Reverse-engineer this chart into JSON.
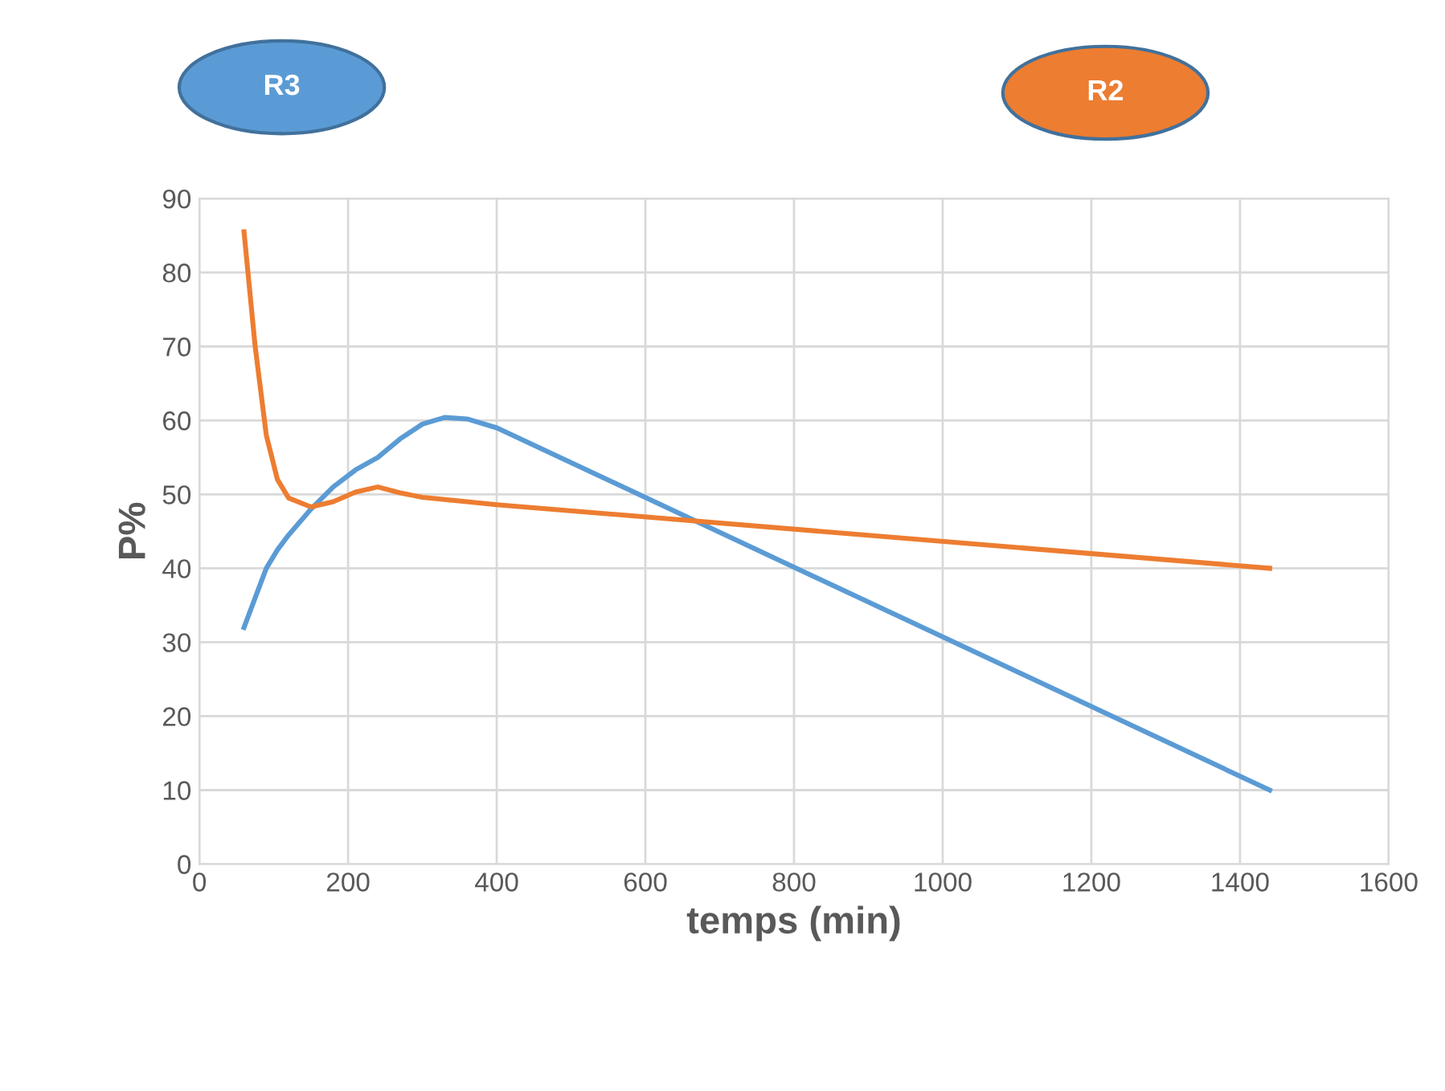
{
  "chart_data": {
    "type": "line",
    "xlabel": "temps (min)",
    "ylabel": "P%",
    "x": [
      60,
      75,
      90,
      105,
      120,
      150,
      180,
      210,
      240,
      270,
      300,
      330,
      360,
      400,
      1440
    ],
    "series": [
      {
        "name": "R3",
        "color": "#5b9bd5",
        "values": [
          32,
          36,
          40,
          42.5,
          44.5,
          48,
          51,
          53.3,
          55,
          57.5,
          59.5,
          60.4,
          60.2,
          59,
          10
        ]
      },
      {
        "name": "R2",
        "color": "#ed7d31",
        "values": [
          85.5,
          70,
          58,
          52,
          49.5,
          48.3,
          49,
          50.3,
          51,
          50.2,
          49.6,
          49.3,
          49,
          48.6,
          40
        ]
      }
    ],
    "xlim": [
      0,
      1600
    ],
    "xticks": [
      0,
      200,
      400,
      600,
      800,
      1000,
      1200,
      1400,
      1600
    ],
    "ylim": [
      0,
      90
    ],
    "yticks": [
      0,
      10,
      20,
      30,
      40,
      50,
      60,
      70,
      80,
      90
    ],
    "grid": true,
    "legend": "top",
    "marker": "none",
    "line_style": "solid"
  }
}
